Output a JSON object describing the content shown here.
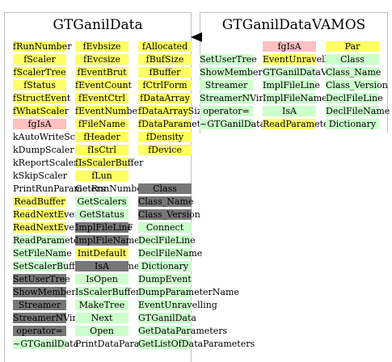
{
  "left_class": {
    "title": "GTGanilData",
    "col1": [
      {
        "t": "fRunNumber",
        "c": "y"
      },
      {
        "t": "fScaler",
        "c": "y"
      },
      {
        "t": "fScalerTree",
        "c": "y"
      },
      {
        "t": "fStatus",
        "c": "y"
      },
      {
        "t": "fStructEvent",
        "c": "y"
      },
      {
        "t": "fWhatScaler",
        "c": "y"
      },
      {
        "t": "fgIsA",
        "c": "p"
      },
      {
        "t": "kAutoWriteScaler",
        "c": "n"
      },
      {
        "t": "kDumpScaler",
        "c": "n"
      },
      {
        "t": "kReportScaler",
        "c": "n"
      },
      {
        "t": "kSkipScaler",
        "c": "n"
      },
      {
        "t": "PrintRunParameters",
        "c": "n"
      },
      {
        "t": "ReadBuffer",
        "c": "y"
      },
      {
        "t": "ReadNextEvent",
        "c": "y"
      },
      {
        "t": "ReadNextEvent_EBYEDAT",
        "c": "y"
      },
      {
        "t": "ReadParameters",
        "c": "g"
      },
      {
        "t": "SetFileName",
        "c": "g"
      },
      {
        "t": "SetScalerBuffersManagement",
        "c": "g"
      },
      {
        "t": "SetUserTree",
        "c": "d"
      },
      {
        "t": "ShowMembers",
        "c": "d"
      },
      {
        "t": "Streamer",
        "c": "d"
      },
      {
        "t": "StreamerNVirtual",
        "c": "d"
      },
      {
        "t": "operator=",
        "c": "d"
      },
      {
        "t": "~GTGanilData",
        "c": "g"
      }
    ],
    "col2": [
      {
        "t": "fEvbsize",
        "c": "y"
      },
      {
        "t": "fEvcsize",
        "c": "y"
      },
      {
        "t": "fEventBrut",
        "c": "y"
      },
      {
        "t": "fEventCount",
        "c": "y"
      },
      {
        "t": "fEventCtrl",
        "c": "y"
      },
      {
        "t": "fEventNumber",
        "c": "y"
      },
      {
        "t": "fFileName",
        "c": "y"
      },
      {
        "t": "fHeader",
        "c": "y"
      },
      {
        "t": "fIsCtrl",
        "c": "y"
      },
      {
        "t": "fIsScalerBuffer",
        "c": "y"
      },
      {
        "t": "fLun",
        "c": "y"
      },
      {
        "t": "GetRunNumber",
        "c": "n"
      },
      {
        "t": "GetScalers",
        "c": "g"
      },
      {
        "t": "GetStatus",
        "c": "g"
      },
      {
        "t": "ImplFileLine",
        "c": "d"
      },
      {
        "t": "ImplFileName",
        "c": "d"
      },
      {
        "t": "InitDefault",
        "c": "y"
      },
      {
        "t": "IsA",
        "c": "d"
      },
      {
        "t": "IsOpen",
        "c": "g"
      },
      {
        "t": "IsScalerBuffer",
        "c": "g"
      },
      {
        "t": "MakeTree",
        "c": "g"
      },
      {
        "t": "Next",
        "c": "g"
      },
      {
        "t": "Open",
        "c": "g"
      },
      {
        "t": "PrintDataParameters",
        "c": "n"
      }
    ],
    "col3": [
      {
        "t": "fAllocated",
        "c": "y"
      },
      {
        "t": "fBufSize",
        "c": "y"
      },
      {
        "t": "fBuffer",
        "c": "y"
      },
      {
        "t": "fCtrlForm",
        "c": "y"
      },
      {
        "t": "fDataArray",
        "c": "y"
      },
      {
        "t": "fDataArraySize",
        "c": "y"
      },
      {
        "t": "fDataParameters",
        "c": "y"
      },
      {
        "t": "fDensity",
        "c": "y"
      },
      {
        "t": "fDevice",
        "c": "y"
      }
    ],
    "col3_lower": [
      {
        "t": "Class",
        "c": "d"
      },
      {
        "t": "Class_Name",
        "c": "d"
      },
      {
        "t": "Class_Version",
        "c": "d"
      },
      {
        "t": "Connect",
        "c": "g"
      },
      {
        "t": "DeclFileLine",
        "c": "g"
      },
      {
        "t": "DeclFileName",
        "c": "g"
      },
      {
        "t": "Dictionary",
        "c": "g"
      },
      {
        "t": "DumpEvent",
        "c": "g"
      },
      {
        "t": "DumpParameterName",
        "c": "g"
      },
      {
        "t": "EventUnravelling",
        "c": "g"
      },
      {
        "t": "GTGanilData",
        "c": "g"
      },
      {
        "t": "GetDataParameters",
        "c": "g"
      },
      {
        "t": "GetListOfDataParameters",
        "c": "g"
      }
    ]
  },
  "right_class": {
    "title": "GTGanilDataVAMOS",
    "col1": [
      {
        "t": "",
        "c": "n"
      },
      {
        "t": "SetUserTree",
        "c": "g"
      },
      {
        "t": "ShowMembers",
        "c": "g"
      },
      {
        "t": "Streamer",
        "c": "g"
      },
      {
        "t": "StreamerNVirtual",
        "c": "g"
      },
      {
        "t": "operator=",
        "c": "g"
      },
      {
        "t": "~GTGanilDataVAMOS",
        "c": "g"
      }
    ],
    "col2": [
      {
        "t": "fgIsA",
        "c": "p"
      },
      {
        "t": "EventUnravelling",
        "c": "y"
      },
      {
        "t": "GTGanilDataVAMOS",
        "c": "g"
      },
      {
        "t": "ImplFileLine",
        "c": "g"
      },
      {
        "t": "ImplFileName",
        "c": "g"
      },
      {
        "t": "IsA",
        "c": "g"
      },
      {
        "t": "ReadParameters",
        "c": "y"
      }
    ],
    "col3": [
      {
        "t": "Par",
        "c": "y"
      },
      {
        "t": "Class",
        "c": "g"
      },
      {
        "t": "Class_Name",
        "c": "g"
      },
      {
        "t": "Class_Version",
        "c": "g"
      },
      {
        "t": "DeclFileLine",
        "c": "g"
      },
      {
        "t": "DeclFileName",
        "c": "g"
      },
      {
        "t": "Dictionary",
        "c": "g"
      }
    ]
  }
}
